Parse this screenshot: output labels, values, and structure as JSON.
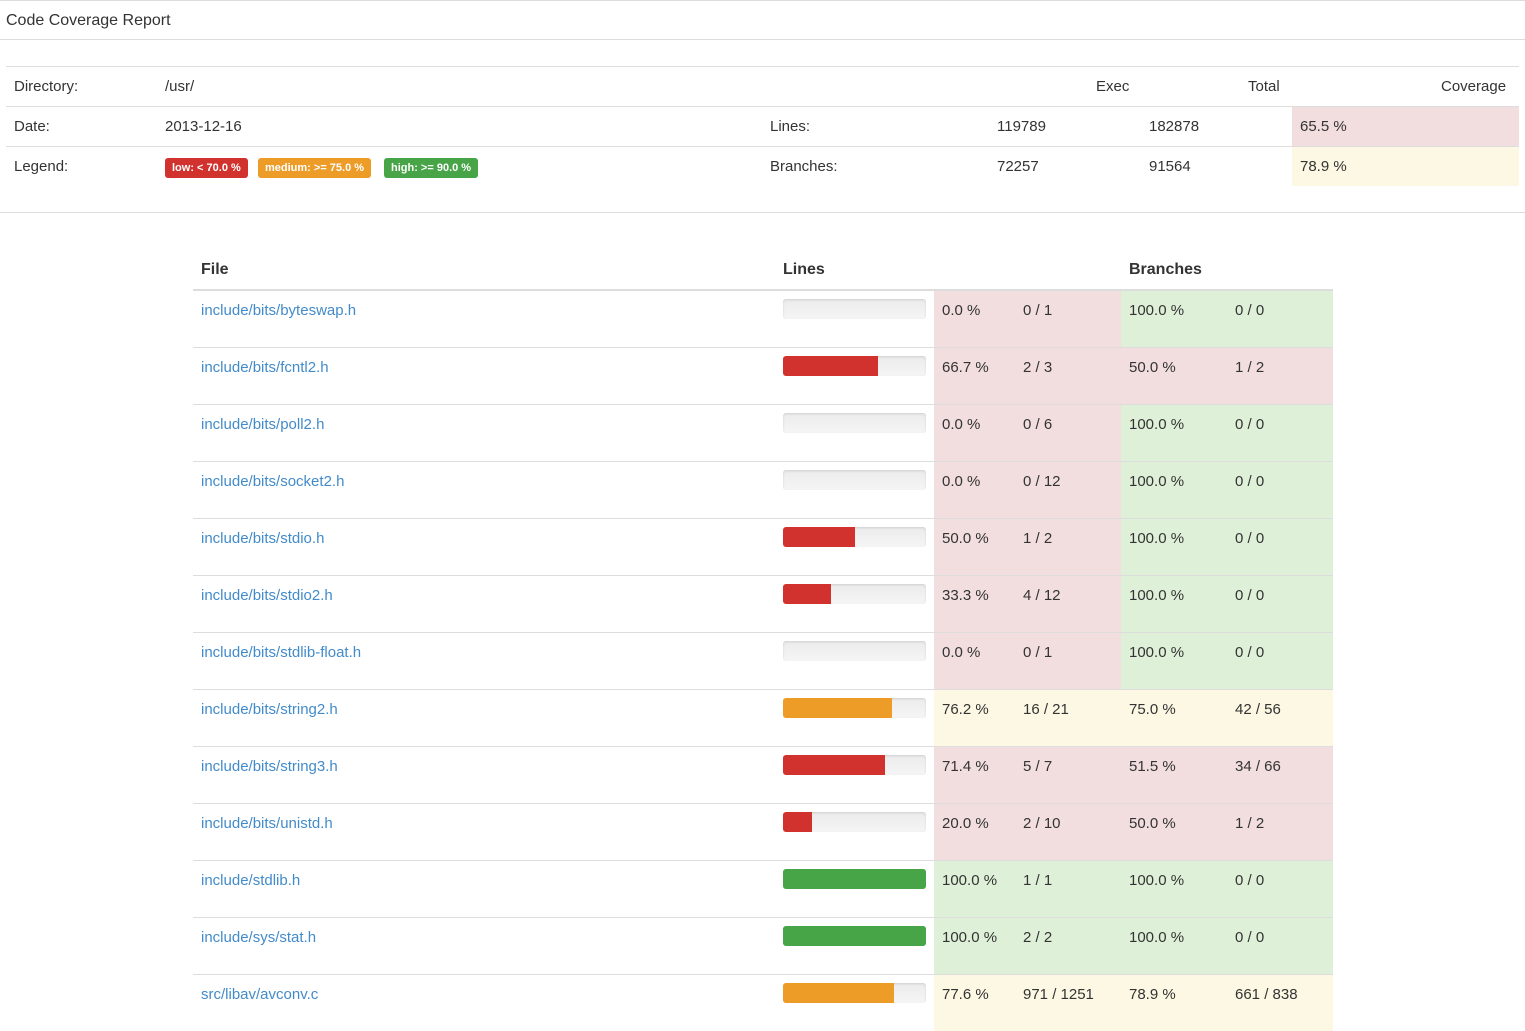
{
  "header": {
    "title": "Code Coverage Report"
  },
  "summary": {
    "directory_label": "Directory:",
    "directory_value": "/usr/",
    "date_label": "Date:",
    "date_value": "2013-12-16",
    "legend_label": "Legend:",
    "col_exec": "Exec",
    "col_total": "Total",
    "col_coverage": "Coverage",
    "lines_label": "Lines:",
    "lines_exec": "119789",
    "lines_total": "182878",
    "lines_coverage": "65.5 %",
    "branches_label": "Branches:",
    "branches_exec": "72257",
    "branches_total": "91564",
    "branches_coverage": "78.9 %",
    "legend": {
      "low": "low: < 70.0 %",
      "medium": "medium: >= 75.0 %",
      "high": "high: >= 90.0 %"
    }
  },
  "colors": {
    "low": "#d2322d",
    "medium": "#ed9c28",
    "high": "#47a447",
    "low_bg": "#f2dede",
    "medium_bg": "#fcf8e3",
    "high_bg": "#dff0d8"
  },
  "table": {
    "headers": {
      "file": "File",
      "lines": "Lines",
      "branches": "Branches"
    },
    "rows": [
      {
        "file": "include/bits/byteswap.h",
        "line_pct": "0.0 %",
        "line_ratio": "0 / 1",
        "line_fill": 0.0,
        "line_level": "low",
        "branch_pct": "100.0 %",
        "branch_ratio": "0 / 0",
        "branch_level": "high"
      },
      {
        "file": "include/bits/fcntl2.h",
        "line_pct": "66.7 %",
        "line_ratio": "2 / 3",
        "line_fill": 0.667,
        "line_level": "low",
        "branch_pct": "50.0 %",
        "branch_ratio": "1 / 2",
        "branch_level": "low"
      },
      {
        "file": "include/bits/poll2.h",
        "line_pct": "0.0 %",
        "line_ratio": "0 / 6",
        "line_fill": 0.0,
        "line_level": "low",
        "branch_pct": "100.0 %",
        "branch_ratio": "0 / 0",
        "branch_level": "high"
      },
      {
        "file": "include/bits/socket2.h",
        "line_pct": "0.0 %",
        "line_ratio": "0 / 12",
        "line_fill": 0.0,
        "line_level": "low",
        "branch_pct": "100.0 %",
        "branch_ratio": "0 / 0",
        "branch_level": "high"
      },
      {
        "file": "include/bits/stdio.h",
        "line_pct": "50.0 %",
        "line_ratio": "1 / 2",
        "line_fill": 0.5,
        "line_level": "low",
        "branch_pct": "100.0 %",
        "branch_ratio": "0 / 0",
        "branch_level": "high"
      },
      {
        "file": "include/bits/stdio2.h",
        "line_pct": "33.3 %",
        "line_ratio": "4 / 12",
        "line_fill": 0.333,
        "line_level": "low",
        "branch_pct": "100.0 %",
        "branch_ratio": "0 / 0",
        "branch_level": "high"
      },
      {
        "file": "include/bits/stdlib-float.h",
        "line_pct": "0.0 %",
        "line_ratio": "0 / 1",
        "line_fill": 0.0,
        "line_level": "low",
        "branch_pct": "100.0 %",
        "branch_ratio": "0 / 0",
        "branch_level": "high"
      },
      {
        "file": "include/bits/string2.h",
        "line_pct": "76.2 %",
        "line_ratio": "16 / 21",
        "line_fill": 0.762,
        "line_level": "medium",
        "branch_pct": "75.0 %",
        "branch_ratio": "42 / 56",
        "branch_level": "medium"
      },
      {
        "file": "include/bits/string3.h",
        "line_pct": "71.4 %",
        "line_ratio": "5 / 7",
        "line_fill": 0.714,
        "line_level": "low",
        "branch_pct": "51.5 %",
        "branch_ratio": "34 / 66",
        "branch_level": "low"
      },
      {
        "file": "include/bits/unistd.h",
        "line_pct": "20.0 %",
        "line_ratio": "2 / 10",
        "line_fill": 0.2,
        "line_level": "low",
        "branch_pct": "50.0 %",
        "branch_ratio": "1 / 2",
        "branch_level": "low"
      },
      {
        "file": "include/stdlib.h",
        "line_pct": "100.0 %",
        "line_ratio": "1 / 1",
        "line_fill": 1.0,
        "line_level": "high",
        "branch_pct": "100.0 %",
        "branch_ratio": "0 / 0",
        "branch_level": "high"
      },
      {
        "file": "include/sys/stat.h",
        "line_pct": "100.0 %",
        "line_ratio": "2 / 2",
        "line_fill": 1.0,
        "line_level": "high",
        "branch_pct": "100.0 %",
        "branch_ratio": "0 / 0",
        "branch_level": "high"
      },
      {
        "file": "src/libav/avconv.c",
        "line_pct": "77.6 %",
        "line_ratio": "971 / 1251",
        "line_fill": 0.776,
        "line_level": "medium",
        "branch_pct": "78.9 %",
        "branch_ratio": "661 / 838",
        "branch_level": "medium"
      }
    ]
  }
}
